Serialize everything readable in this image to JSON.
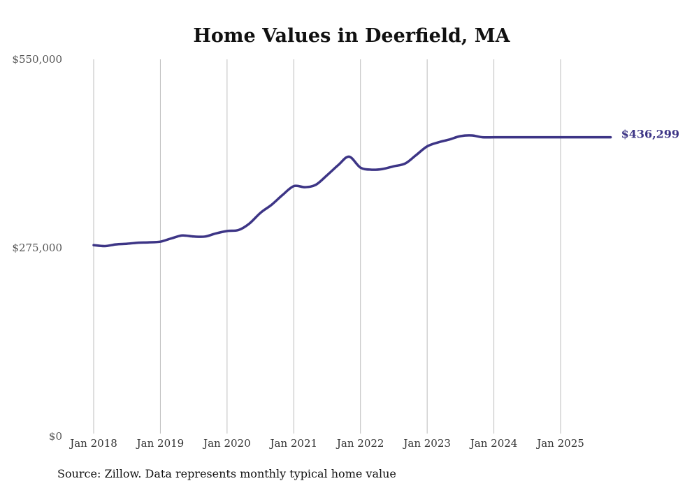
{
  "chart_data": {
    "type": "line",
    "title": "Home Values in Deerfield, MA",
    "xlabel": "",
    "ylabel": "",
    "ylim": [
      0,
      550000
    ],
    "yticks": [
      {
        "value": 0,
        "label": "$0"
      },
      {
        "value": 275000,
        "label": "$275,000"
      },
      {
        "value": 550000,
        "label": "$550,000"
      }
    ],
    "xticks": [
      {
        "value": 2018.0,
        "label": "Jan 2018"
      },
      {
        "value": 2019.0,
        "label": "Jan 2019"
      },
      {
        "value": 2020.0,
        "label": "Jan 2020"
      },
      {
        "value": 2021.0,
        "label": "Jan 2021"
      },
      {
        "value": 2022.0,
        "label": "Jan 2022"
      },
      {
        "value": 2023.0,
        "label": "Jan 2023"
      },
      {
        "value": 2024.0,
        "label": "Jan 2024"
      },
      {
        "value": 2025.0,
        "label": "Jan 2025"
      }
    ],
    "grid": "vertical",
    "series": [
      {
        "name": "Typical home value",
        "color": "#3d3586",
        "x": [
          2018.0,
          2018.17,
          2018.33,
          2018.5,
          2018.67,
          2018.83,
          2019.0,
          2019.17,
          2019.33,
          2019.5,
          2019.67,
          2019.83,
          2020.0,
          2020.17,
          2020.33,
          2020.5,
          2020.67,
          2020.83,
          2021.0,
          2021.17,
          2021.33,
          2021.5,
          2021.67,
          2021.83,
          2022.0,
          2022.17,
          2022.33,
          2022.5,
          2022.67,
          2022.83,
          2023.0,
          2023.17,
          2023.33,
          2023.5,
          2023.67,
          2023.83,
          2024.0,
          2024.17,
          2024.33,
          2024.5,
          2024.67,
          2024.83,
          2025.0,
          2025.17,
          2025.33,
          2025.5,
          2025.75
        ],
        "values": [
          279000,
          277500,
          280000,
          281000,
          282500,
          283000,
          284000,
          289000,
          293000,
          291500,
          291500,
          296000,
          299500,
          301000,
          310000,
          326000,
          338000,
          352000,
          365000,
          363500,
          367000,
          381000,
          396000,
          408000,
          392000,
          389000,
          390000,
          394000,
          398000,
          410000,
          423000,
          429000,
          433000,
          438000,
          439000,
          436299,
          436299,
          436299,
          436299,
          436299,
          436299,
          436299,
          436299,
          436299,
          436299,
          436299,
          436299
        ]
      }
    ],
    "end_label": "$436,299",
    "end_value": 436299
  },
  "footer": {
    "source": "Source: Zillow. Data represents monthly typical home value"
  }
}
